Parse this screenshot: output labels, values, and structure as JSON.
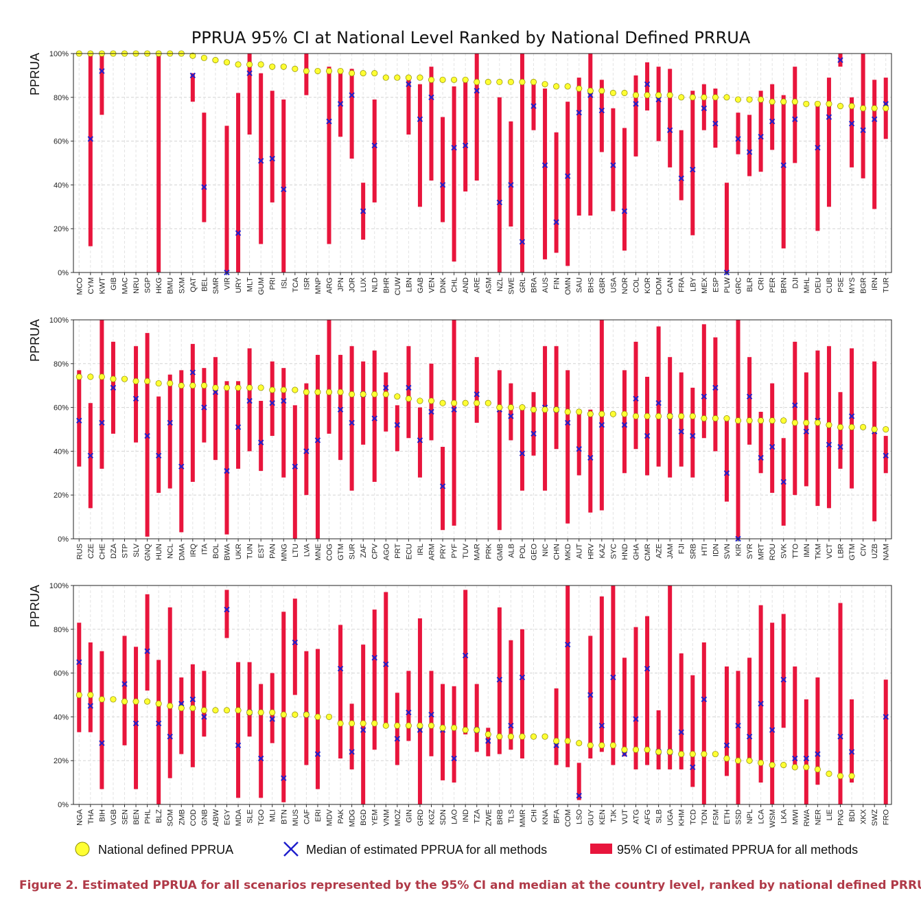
{
  "chart_data": {
    "type": "range",
    "title": "PPRUA 95% CI at National Level Ranked by National Defined PRRUA",
    "ylabel": "PPRUA",
    "ylim": [
      0,
      100
    ],
    "yticks": [
      "0%",
      "20%",
      "40%",
      "60%",
      "80%",
      "100%"
    ],
    "grid": true,
    "legend": {
      "placement": "bottom",
      "entries": [
        {
          "name": "National defined PPRUA",
          "marker": "yellow-circle"
        },
        {
          "name": "Median of estimated PPRUA for all methods",
          "marker": "blue-x"
        },
        {
          "name": "95% CI of estimated PPRUA for all methods",
          "marker": "red-bar"
        }
      ]
    },
    "colors": {
      "national": "#ffff33",
      "median": "#1f1fcc",
      "ci": "#e8153c",
      "caption": "#b03a48"
    },
    "panels": [
      {
        "categories": [
          "MCO",
          "CYM",
          "KWT",
          "GIB",
          "MAC",
          "NRU",
          "SGP",
          "HKG",
          "BMU",
          "SXM",
          "QAT",
          "BEL",
          "SMR",
          "VIR",
          "URY",
          "MLT",
          "GUM",
          "PRI",
          "ISL",
          "TCA",
          "ISR",
          "MNP",
          "ARG",
          "JPN",
          "JOR",
          "LUX",
          "NLD",
          "BHR",
          "CUW",
          "LBN",
          "GAB",
          "VEN",
          "DNK",
          "CHL",
          "AND",
          "ARE",
          "ASM",
          "NZL",
          "SWE",
          "GRL",
          "BRA",
          "AUS",
          "FIN",
          "OMN",
          "SAU",
          "BHS",
          "GBR",
          "USA",
          "NOR",
          "COL",
          "KOR",
          "DOM",
          "CAN",
          "FRA",
          "LBY",
          "MEX",
          "ESP",
          "PLW",
          "GRC",
          "BLR",
          "CRI",
          "PER",
          "BRN",
          "DJI",
          "MHL",
          "DEU",
          "CUB",
          "PSE",
          "MYS",
          "BGR",
          "IRN",
          "TUR"
        ],
        "national": [
          100,
          100,
          100,
          100,
          100,
          100,
          100,
          100,
          100,
          100,
          99,
          98,
          97,
          96,
          95,
          95,
          95,
          94,
          94,
          93,
          92,
          92,
          92,
          92,
          91,
          91,
          91,
          89,
          89,
          89,
          89,
          88,
          88,
          88,
          88,
          87,
          87,
          87,
          87,
          87,
          87,
          86,
          85,
          85,
          84,
          83,
          83,
          82,
          82,
          81,
          81,
          81,
          81,
          80,
          80,
          80,
          80,
          80,
          79,
          79,
          79,
          78,
          78,
          78,
          77,
          77,
          77,
          76,
          76,
          75,
          75,
          75
        ],
        "median": [
          null,
          61,
          92,
          null,
          null,
          null,
          null,
          null,
          null,
          null,
          90,
          39,
          null,
          0,
          18,
          91,
          51,
          52,
          38,
          null,
          null,
          null,
          69,
          77,
          81,
          28,
          58,
          null,
          null,
          86,
          70,
          80,
          40,
          57,
          58,
          83,
          null,
          32,
          40,
          14,
          76,
          49,
          23,
          44,
          73,
          81,
          74,
          49,
          28,
          77,
          86,
          79,
          65,
          43,
          47,
          75,
          68,
          0,
          61,
          55,
          62,
          69,
          49,
          70,
          null,
          57,
          71,
          97,
          68,
          65,
          70,
          77
        ],
        "ci_low": [
          null,
          12,
          72,
          null,
          null,
          null,
          null,
          0,
          null,
          null,
          78,
          23,
          null,
          0,
          0,
          63,
          13,
          32,
          0,
          null,
          81,
          null,
          13,
          62,
          52,
          15,
          32,
          null,
          null,
          63,
          30,
          42,
          23,
          5,
          37,
          42,
          null,
          0,
          21,
          0,
          65,
          6,
          9,
          3,
          26,
          26,
          55,
          28,
          10,
          53,
          74,
          60,
          48,
          33,
          17,
          65,
          57,
          0,
          54,
          44,
          46,
          56,
          11,
          50,
          null,
          19,
          30,
          94,
          48,
          43,
          29,
          61
        ],
        "ci_high": [
          null,
          100,
          100,
          null,
          null,
          null,
          null,
          100,
          null,
          null,
          91,
          73,
          null,
          67,
          82,
          100,
          91,
          83,
          79,
          null,
          100,
          null,
          94,
          93,
          93,
          41,
          79,
          null,
          null,
          90,
          86,
          94,
          71,
          85,
          88,
          100,
          null,
          80,
          69,
          100,
          88,
          84,
          64,
          78,
          89,
          100,
          88,
          75,
          66,
          90,
          96,
          94,
          93,
          65,
          83,
          86,
          84,
          41,
          73,
          72,
          83,
          86,
          81,
          94,
          null,
          78,
          89,
          100,
          80,
          100,
          88,
          89
        ]
      },
      {
        "categories": [
          "RUS",
          "CZE",
          "CHE",
          "DZA",
          "STP",
          "SLV",
          "GNQ",
          "HUN",
          "NCL",
          "DMA",
          "IRQ",
          "ITA",
          "BOL",
          "BWA",
          "UKR",
          "TUN",
          "EST",
          "PAN",
          "MNG",
          "LTU",
          "LVA",
          "MNE",
          "COG",
          "GTM",
          "SUR",
          "ZAF",
          "CPV",
          "AGO",
          "PRT",
          "ECU",
          "IRL",
          "ARM",
          "PRY",
          "PYF",
          "TUV",
          "MAR",
          "PRK",
          "GMB",
          "ALB",
          "POL",
          "GEO",
          "NIC",
          "CHN",
          "MKD",
          "AUT",
          "HRV",
          "KAZ",
          "SYC",
          "HND",
          "GHA",
          "CMR",
          "AZE",
          "JAM",
          "FJI",
          "SRB",
          "HTI",
          "IDN",
          "SVN",
          "KIR",
          "SYR",
          "MRT",
          "ROU",
          "SVK",
          "TTO",
          "IMN",
          "TKM",
          "VCT",
          "LBR",
          "GTM",
          "CIV",
          "UZB",
          "NAM"
        ],
        "national": [
          74,
          74,
          74,
          73,
          73,
          72,
          72,
          71,
          71,
          70,
          70,
          70,
          69,
          69,
          69,
          69,
          69,
          68,
          68,
          68,
          67,
          67,
          67,
          67,
          66,
          66,
          66,
          66,
          65,
          64,
          63,
          63,
          62,
          62,
          62,
          62,
          62,
          60,
          60,
          60,
          59,
          59,
          59,
          58,
          58,
          57,
          57,
          57,
          57,
          56,
          56,
          56,
          56,
          56,
          56,
          55,
          55,
          55,
          54,
          54,
          54,
          54,
          54,
          53,
          53,
          53,
          52,
          51,
          51,
          51,
          50,
          50
        ],
        "median": [
          54,
          38,
          53,
          69,
          null,
          64,
          47,
          38,
          53,
          33,
          76,
          60,
          67,
          31,
          51,
          63,
          44,
          62,
          63,
          33,
          40,
          45,
          null,
          59,
          53,
          66,
          55,
          69,
          52,
          69,
          45,
          58,
          24,
          59,
          null,
          66,
          null,
          59,
          56,
          39,
          48,
          60,
          59,
          53,
          41,
          37,
          52,
          null,
          52,
          64,
          47,
          62,
          56,
          49,
          47,
          65,
          69,
          30,
          0,
          65,
          37,
          42,
          26,
          61,
          49,
          54,
          43,
          42,
          56,
          null,
          49,
          38
        ],
        "ci_low": [
          33,
          14,
          32,
          48,
          null,
          44,
          1,
          21,
          23,
          3,
          26,
          44,
          36,
          2,
          32,
          40,
          31,
          47,
          28,
          0,
          20,
          0,
          48,
          36,
          22,
          43,
          26,
          49,
          40,
          46,
          28,
          45,
          4,
          6,
          null,
          53,
          null,
          4,
          45,
          22,
          38,
          22,
          41,
          7,
          29,
          12,
          13,
          null,
          30,
          41,
          29,
          33,
          28,
          33,
          28,
          46,
          40,
          17,
          0,
          43,
          30,
          21,
          6,
          20,
          24,
          15,
          14,
          32,
          23,
          null,
          8,
          30
        ],
        "ci_high": [
          77,
          62,
          100,
          90,
          null,
          88,
          94,
          65,
          75,
          77,
          89,
          78,
          83,
          72,
          72,
          87,
          63,
          81,
          78,
          61,
          71,
          84,
          100,
          84,
          88,
          81,
          86,
          76,
          61,
          88,
          60,
          80,
          42,
          100,
          null,
          83,
          null,
          77,
          71,
          61,
          67,
          88,
          88,
          77,
          58,
          59,
          100,
          null,
          77,
          90,
          74,
          97,
          83,
          76,
          69,
          98,
          92,
          54,
          100,
          83,
          58,
          71,
          46,
          90,
          76,
          86,
          88,
          67,
          87,
          null,
          81,
          47
        ]
      },
      {
        "categories": [
          "NGA",
          "THA",
          "BIH",
          "VGB",
          "SEN",
          "BEN",
          "PHL",
          "BLZ",
          "SOM",
          "ZMB",
          "COD",
          "GNB",
          "ABW",
          "EGY",
          "MDA",
          "SLE",
          "TGO",
          "MLI",
          "BTN",
          "MUS",
          "CAF",
          "ERI",
          "MDV",
          "PAK",
          "MDG",
          "BGD",
          "YEM",
          "VNM",
          "MOZ",
          "GIN",
          "GRD",
          "KGZ",
          "SDN",
          "LAO",
          "IND",
          "TZA",
          "ZWE",
          "BRB",
          "TLS",
          "MMR",
          "CHI",
          "KNA",
          "BFA",
          "COM",
          "LSO",
          "GUY",
          "KEN",
          "TJK",
          "VUT",
          "ATG",
          "AFG",
          "SLB",
          "UGA",
          "KHM",
          "TCD",
          "TON",
          "FSM",
          "ETH",
          "SSD",
          "NPL",
          "LCA",
          "WSM",
          "LKA",
          "MWI",
          "RWA",
          "NER",
          "LIE",
          "PNG",
          "BDI",
          "XKX",
          "SWZ",
          "FRO"
        ],
        "national": [
          50,
          50,
          48,
          48,
          47,
          47,
          47,
          46,
          45,
          44,
          44,
          43,
          43,
          43,
          43,
          42,
          42,
          42,
          41,
          41,
          41,
          40,
          40,
          37,
          37,
          37,
          37,
          36,
          36,
          36,
          36,
          36,
          35,
          35,
          34,
          34,
          32,
          31,
          31,
          31,
          31,
          31,
          29,
          29,
          28,
          27,
          27,
          27,
          25,
          25,
          25,
          24,
          24,
          23,
          23,
          23,
          23,
          21,
          20,
          20,
          19,
          18,
          18,
          17,
          17,
          16,
          14,
          13,
          13,
          null,
          null,
          null
        ],
        "median": [
          65,
          45,
          28,
          null,
          55,
          37,
          70,
          37,
          31,
          46,
          48,
          40,
          null,
          89,
          27,
          42,
          21,
          39,
          12,
          74,
          41,
          23,
          null,
          62,
          24,
          34,
          67,
          64,
          30,
          42,
          34,
          41,
          34,
          21,
          68,
          34,
          29,
          57,
          36,
          58,
          null,
          null,
          27,
          73,
          4,
          50,
          36,
          58,
          23,
          39,
          62,
          24,
          24,
          33,
          17,
          48,
          null,
          27,
          36,
          31,
          46,
          34,
          57,
          21,
          21,
          23,
          null,
          31,
          24,
          null,
          null,
          40
        ],
        "ci_low": [
          33,
          33,
          7,
          null,
          27,
          7,
          52,
          0,
          12,
          23,
          17,
          31,
          null,
          76,
          3,
          31,
          3,
          28,
          1,
          50,
          18,
          7,
          null,
          21,
          16,
          0,
          25,
          37,
          18,
          29,
          0,
          22,
          11,
          10,
          32,
          24,
          22,
          23,
          25,
          21,
          null,
          null,
          18,
          17,
          2,
          21,
          24,
          18,
          22,
          16,
          18,
          16,
          16,
          16,
          8,
          0,
          null,
          13,
          0,
          19,
          10,
          0,
          35,
          16,
          0,
          9,
          null,
          0,
          10,
          null,
          null,
          0
        ],
        "ci_high": [
          83,
          74,
          70,
          null,
          77,
          72,
          96,
          66,
          90,
          58,
          64,
          61,
          null,
          98,
          65,
          65,
          55,
          60,
          88,
          94,
          70,
          71,
          null,
          82,
          46,
          73,
          89,
          97,
          51,
          61,
          85,
          61,
          55,
          54,
          98,
          55,
          35,
          90,
          75,
          80,
          null,
          null,
          53,
          100,
          19,
          77,
          95,
          100,
          67,
          81,
          86,
          43,
          100,
          69,
          59,
          74,
          null,
          63,
          61,
          67,
          91,
          83,
          87,
          63,
          48,
          58,
          null,
          92,
          48,
          null,
          null,
          57
        ]
      }
    ]
  },
  "figure_caption": "Figure 2.  Estimated PPRUA for all scenarios represented by the 95% CI and median at the country level, ranked by national defined PRRUA"
}
